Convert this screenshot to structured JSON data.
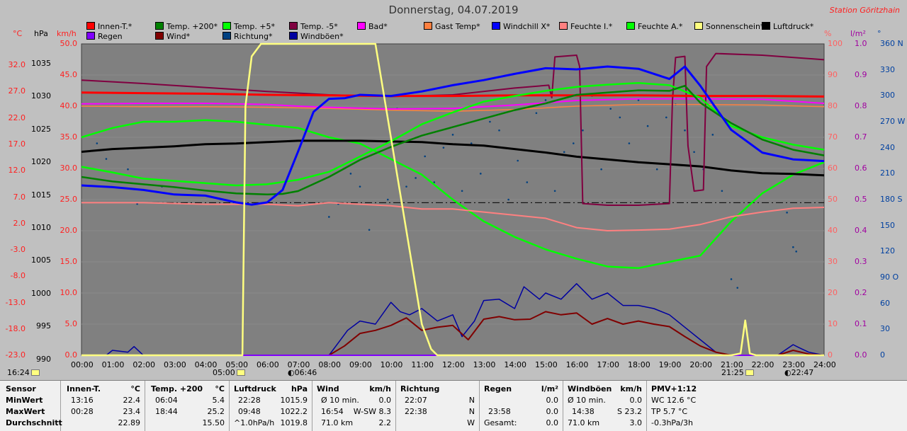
{
  "title": "Donnerstag, 04.07.2019",
  "station": "Station Göritzhain",
  "legend": [
    {
      "label": "Innen-T.*",
      "color": "#ff0000"
    },
    {
      "label": "Temp. +200*",
      "color": "#008000"
    },
    {
      "label": "Temp. +5*",
      "color": "#00ff00"
    },
    {
      "label": "Temp. -5*",
      "color": "#800040"
    },
    {
      "label": "Bad*",
      "color": "#ff00ff"
    },
    {
      "label": "Gast Temp*",
      "color": "#ff8040"
    },
    {
      "label": "Windchill X*",
      "color": "#0000ff"
    },
    {
      "label": "Feuchte I.*",
      "color": "#ff8080"
    },
    {
      "label": "Feuchte A.*",
      "color": "#00ff00"
    },
    {
      "label": "Sonnenschein*",
      "color": "#ffff80"
    },
    {
      "label": "Luftdruck*",
      "color": "#000000"
    },
    {
      "label": "Regen",
      "color": "#8000ff"
    },
    {
      "label": "Wind*",
      "color": "#800000"
    },
    {
      "label": "Richtung*",
      "color": "#004080"
    },
    {
      "label": "Windböen*",
      "color": "#0000a0"
    }
  ],
  "axis_units": {
    "temp": "°C",
    "pressure": "hPa",
    "wind": "km/h",
    "humidity": "%",
    "rain": "l/m²",
    "dir": "°"
  },
  "axes": {
    "temp_ticks": [
      "32.0",
      "27.0",
      "22.0",
      "17.0",
      "12.0",
      "7.0",
      "2.0",
      "-3.0",
      "-8.0",
      "-13.0",
      "-18.0",
      "-23.0"
    ],
    "pressure_ticks": [
      "1035",
      "1030",
      "1025",
      "1020",
      "1015",
      "1010",
      "1005",
      "1000",
      "995",
      "990"
    ],
    "wind_ticks": [
      "50.0",
      "45.0",
      "40.0",
      "35.0",
      "30.0",
      "25.0",
      "20.0",
      "15.0",
      "10.0",
      "5.0",
      "0.0"
    ],
    "humidity_ticks": [
      "100",
      "90",
      "80",
      "70",
      "60",
      "50",
      "40",
      "30",
      "20",
      "10",
      "0"
    ],
    "rain_ticks": [
      "1.0",
      "0.9",
      "0.8",
      "0.7",
      "0.6",
      "0.5",
      "0.4",
      "0.3",
      "0.2",
      "0.1",
      "0.0"
    ],
    "dir_ticks": [
      "360 N",
      "330",
      "300",
      "270 W",
      "240",
      "210",
      "180 S",
      "150",
      "120",
      "90 O",
      "60",
      "30",
      "0"
    ],
    "time_ticks": [
      "00:00",
      "01:00",
      "02:00",
      "03:00",
      "04:00",
      "05:00",
      "06:00",
      "07:00",
      "08:00",
      "09:00",
      "10:00",
      "11:00",
      "12:00",
      "13:00",
      "14:00",
      "15:00",
      "16:00",
      "17:00",
      "18:00",
      "19:00",
      "20:00",
      "21:00",
      "22:00",
      "23:00",
      "24:00"
    ]
  },
  "markers": {
    "now": "16:24",
    "sunrise": "05:00",
    "moonrise": "06:46",
    "sunset": "21:25",
    "moonset": "22:47"
  },
  "chart_data": {
    "type": "line",
    "title": "Donnerstag, 04.07.2019",
    "x_unit": "hours",
    "xlim": [
      0,
      24
    ],
    "series": [
      {
        "name": "Innen-T.*",
        "axis": "temp",
        "color": "#ff0000",
        "x": [
          0,
          2,
          4,
          6,
          8,
          10,
          12,
          14,
          16,
          18,
          20,
          22,
          24
        ],
        "y": [
          23.4,
          23.3,
          23.2,
          23.0,
          22.9,
          22.8,
          22.8,
          22.9,
          22.9,
          22.9,
          22.8,
          22.8,
          22.7
        ]
      },
      {
        "name": "Temp. +200*",
        "axis": "temp",
        "color": "#008000",
        "x": [
          0,
          1,
          2,
          3,
          4,
          5,
          6,
          6.5,
          7,
          8,
          9,
          10,
          11,
          12,
          13,
          14,
          15,
          16,
          17,
          18,
          19,
          19.5,
          20,
          21,
          22,
          23,
          24
        ],
        "y": [
          8.5,
          7.7,
          7.2,
          6.7,
          6.1,
          5.6,
          5.4,
          5.5,
          6.0,
          8.5,
          11.5,
          13.8,
          15.8,
          17.3,
          18.8,
          20.3,
          21.5,
          23.0,
          23.4,
          23.8,
          23.7,
          24.6,
          21.6,
          18.0,
          15.1,
          13.3,
          12.3
        ]
      },
      {
        "name": "Temp. +5*",
        "axis": "temp",
        "color": "#00ff00",
        "x": [
          0,
          1,
          2,
          3,
          4,
          5,
          6,
          6.5,
          7,
          8,
          9,
          10,
          11,
          12,
          13,
          14,
          15,
          16,
          17,
          18,
          19,
          20,
          20.5,
          21,
          22,
          23,
          24
        ],
        "y": [
          10.3,
          9.3,
          8.2,
          7.8,
          7.4,
          7.0,
          7.2,
          7.6,
          8.0,
          9.4,
          12.1,
          14.8,
          17.8,
          19.9,
          21.8,
          22.8,
          23.7,
          24.4,
          24.8,
          25.1,
          24.7,
          22.5,
          20.0,
          17.5,
          15.5,
          14.2,
          13.3
        ]
      },
      {
        "name": "Temp. -5*",
        "axis": "temp",
        "color": "#800040",
        "x": [
          0,
          2,
          4,
          6,
          8,
          10,
          12,
          14,
          15.1,
          15.2,
          15.3,
          16,
          16.1,
          16.2,
          17,
          18,
          19,
          19.1,
          19.2,
          19.5,
          19.6,
          19.8,
          20.1,
          20.2,
          20.5,
          22,
          24
        ],
        "y": [
          25.6,
          25.0,
          24.3,
          23.6,
          23.0,
          22.7,
          23.0,
          24.2,
          24.7,
          22.5,
          29.7,
          30.0,
          28.0,
          3.8,
          3.5,
          3.5,
          3.8,
          22.0,
          29.6,
          29.8,
          14.0,
          6.0,
          6.2,
          28.0,
          30.3,
          30.0,
          29.2
        ]
      },
      {
        "name": "Bad*",
        "axis": "temp",
        "color": "#ff00ff",
        "x": [
          0,
          2,
          4,
          5,
          6,
          7,
          8,
          10,
          12,
          14,
          16,
          18,
          20,
          22,
          24
        ],
        "y": [
          21.4,
          21.5,
          21.5,
          21.4,
          21.3,
          21.0,
          20.8,
          20.5,
          20.6,
          21.2,
          22.0,
          22.3,
          22.3,
          22.2,
          21.5
        ]
      },
      {
        "name": "Gast Temp*",
        "axis": "temp",
        "color": "#ff8040",
        "x": [
          0,
          2,
          4,
          6,
          8,
          10,
          12,
          14,
          16,
          18,
          20,
          22,
          24
        ],
        "y": [
          21.0,
          20.9,
          20.9,
          20.8,
          20.6,
          20.3,
          20.1,
          20.4,
          21.0,
          21.3,
          21.3,
          21.2,
          20.9
        ]
      },
      {
        "name": "Windchill X*",
        "axis": "temp",
        "color": "#0000ff",
        "x": [
          0,
          1,
          2,
          3,
          4,
          5,
          5.5,
          6,
          6.5,
          7,
          7.5,
          8,
          8.5,
          9,
          10,
          11,
          12,
          13,
          14,
          15,
          16,
          17,
          18,
          19,
          19.5,
          20,
          21,
          22,
          23,
          24
        ],
        "y": [
          7.0,
          6.7,
          6.2,
          5.4,
          5.2,
          4.0,
          3.6,
          4.0,
          6.2,
          13.0,
          20.0,
          22.3,
          22.4,
          23.0,
          22.8,
          23.6,
          24.7,
          25.6,
          26.7,
          27.7,
          27.5,
          28.0,
          27.6,
          25.8,
          28.0,
          24.6,
          16.8,
          12.8,
          11.6,
          11.3
        ]
      },
      {
        "name": "Feuchte I.*",
        "axis": "humidity",
        "color": "#ff8080",
        "x": [
          0,
          2,
          4,
          6,
          7,
          8,
          9,
          10,
          11,
          12,
          13,
          14,
          15,
          16,
          17,
          18,
          19,
          20,
          21,
          22,
          23,
          24
        ],
        "y": [
          49,
          49,
          48.5,
          48.5,
          48,
          49,
          48.5,
          48,
          47,
          47,
          46,
          45,
          44,
          41,
          40,
          40.2,
          40.5,
          42,
          44.5,
          46,
          47.2,
          47.5
        ]
      },
      {
        "name": "Feuchte A.*",
        "axis": "humidity",
        "color": "#00ff00",
        "x": [
          0,
          1,
          2,
          3,
          4,
          5,
          6,
          7,
          8,
          9,
          10,
          11,
          12,
          13,
          14,
          15,
          16,
          17,
          18,
          19,
          20,
          21,
          22,
          23,
          24
        ],
        "y": [
          70,
          73,
          75,
          75,
          75.5,
          75,
          74,
          73,
          70,
          68,
          63,
          58,
          50,
          43,
          38,
          34,
          31,
          28.5,
          28,
          30,
          32,
          43,
          52,
          58,
          62
        ]
      },
      {
        "name": "Sonnenschein*",
        "axis": "wind",
        "color": "#ffff80",
        "x": [
          0,
          5.0,
          5.2,
          5.3,
          5.5,
          5.8,
          7,
          8,
          9,
          9.5,
          9.6,
          10.5,
          11,
          11.3,
          11.5,
          12,
          21,
          21.3,
          21.45,
          21.6,
          21.8,
          24
        ],
        "y": [
          0,
          0,
          0,
          40,
          48,
          50,
          50,
          50,
          50,
          50,
          47,
          20,
          5,
          1,
          0,
          0,
          0,
          0.3,
          5.6,
          0.3,
          0,
          0
        ]
      },
      {
        "name": "Luftdruck*",
        "axis": "pressure",
        "color": "#000000",
        "x": [
          0,
          1,
          2,
          3,
          4,
          5,
          6,
          7,
          8,
          9,
          10,
          11,
          12,
          13,
          14,
          15,
          16,
          17,
          18,
          19,
          20,
          21,
          22,
          23,
          24
        ],
        "y": [
          1019.4,
          1019.8,
          1020.0,
          1020.2,
          1020.5,
          1020.6,
          1020.8,
          1021.0,
          1021.0,
          1021.0,
          1020.9,
          1020.8,
          1020.5,
          1020.3,
          1019.8,
          1019.3,
          1018.7,
          1018.3,
          1017.9,
          1017.6,
          1017.3,
          1016.7,
          1016.3,
          1016.2,
          1016.0
        ]
      },
      {
        "name": "Regen",
        "axis": "rain",
        "color": "#8000ff",
        "x": [
          0,
          24
        ],
        "y": [
          0,
          0
        ]
      },
      {
        "name": "Wind*",
        "axis": "wind",
        "color": "#800000",
        "x": [
          0,
          8,
          8.5,
          9,
          9.5,
          10,
          10.5,
          11,
          11.5,
          12,
          12.5,
          13,
          13.5,
          14,
          14.5,
          15,
          15.5,
          16,
          16.5,
          17,
          17.5,
          18,
          18.5,
          19,
          19.5,
          20,
          20.5,
          21,
          21.5,
          22,
          22.5,
          23,
          23.5,
          24
        ],
        "y": [
          0,
          0,
          1.5,
          3.5,
          4.0,
          4.8,
          6.0,
          4.0,
          4.5,
          4.8,
          2.5,
          5.8,
          6.2,
          5.7,
          5.8,
          7.0,
          6.5,
          6.8,
          5.0,
          5.9,
          5.0,
          5.5,
          5.0,
          4.6,
          3.0,
          1.5,
          0.5,
          0.0,
          0.0,
          0.0,
          0.0,
          0.8,
          0.2,
          0
        ]
      },
      {
        "name": "Windböen*",
        "axis": "wind",
        "color": "#0000a0",
        "x": [
          0,
          0.8,
          1.0,
          1.5,
          1.7,
          2.0,
          8,
          8.3,
          8.6,
          9,
          9.5,
          10,
          10.3,
          10.6,
          11,
          11.5,
          12,
          12.3,
          12.7,
          13,
          13.5,
          14,
          14.3,
          14.8,
          15,
          15.5,
          16,
          16.5,
          17,
          17.5,
          18,
          18.5,
          19,
          19.5,
          20,
          20.5,
          21,
          21.5,
          22,
          22.5,
          23,
          23.2,
          23.5,
          24
        ],
        "y": [
          0,
          0,
          0.8,
          0.5,
          1.4,
          0,
          0,
          2.0,
          4.0,
          5.5,
          5.0,
          8.5,
          7.0,
          6.5,
          7.5,
          5.5,
          6.5,
          3.0,
          5.5,
          8.8,
          9.0,
          7.5,
          11.0,
          9.0,
          10.0,
          9.0,
          11.5,
          9.0,
          10.0,
          8.0,
          8.0,
          7.5,
          6.5,
          4.5,
          2.5,
          0.5,
          0,
          0,
          0,
          0,
          1.7,
          1.2,
          0.5,
          0
        ]
      },
      {
        "name": "Richtung*",
        "axis": "dir",
        "type": "scatter",
        "color": "#004080",
        "x": [
          0.5,
          0.8,
          1.5,
          1.8,
          2.6,
          8.0,
          8.3,
          8.7,
          9.0,
          9.3,
          9.6,
          9.9,
          10.2,
          10.5,
          10.8,
          11.1,
          11.4,
          11.7,
          12.0,
          12.3,
          12.6,
          12.9,
          13.2,
          13.5,
          13.8,
          14.1,
          14.4,
          14.7,
          15.0,
          15.3,
          15.6,
          15.9,
          16.2,
          16.5,
          16.8,
          17.1,
          17.4,
          17.7,
          18.0,
          18.3,
          18.6,
          18.9,
          19.2,
          19.5,
          19.8,
          20.1,
          20.4,
          20.7,
          21.0,
          21.2,
          22.8,
          23.0,
          23.1
        ],
        "y": [
          245,
          227,
          215,
          175,
          195,
          160,
          175,
          210,
          195,
          145,
          235,
          180,
          285,
          195,
          205,
          230,
          200,
          240,
          255,
          190,
          245,
          210,
          270,
          260,
          180,
          225,
          200,
          280,
          295,
          190,
          235,
          245,
          260,
          300,
          215,
          285,
          275,
          245,
          295,
          265,
          215,
          275,
          290,
          260,
          235,
          215,
          255,
          190,
          88,
          78,
          165,
          125,
          120
        ]
      }
    ],
    "axes_ranges": {
      "temp": [
        -23,
        32
      ],
      "pressure": [
        990,
        1035
      ],
      "wind": [
        0,
        50
      ],
      "humidity": [
        0,
        100
      ],
      "rain": [
        0,
        1
      ],
      "dir": [
        0,
        360
      ]
    },
    "reference_line": {
      "axis": "wind",
      "y": 24.5,
      "style": "dashed"
    }
  },
  "summary": {
    "col1": {
      "header": "Sensor",
      "rows": [
        "MinWert",
        "MaxWert",
        "Durchschnitt"
      ]
    },
    "col2": {
      "header": "Innen-T.",
      "unit": "°C",
      "rows": [
        [
          "13:16",
          "22.4"
        ],
        [
          "00:28",
          "23.4"
        ],
        [
          "",
          "22.89"
        ]
      ]
    },
    "col3": {
      "header": "Temp. +200",
      "unit": "°C",
      "rows": [
        [
          "06:04",
          "5.4"
        ],
        [
          "18:44",
          "25.2"
        ],
        [
          "",
          "15.50"
        ]
      ]
    },
    "col4": {
      "header": "Luftdruck",
      "unit": "hPa",
      "rows": [
        [
          "22:28",
          "1015.9"
        ],
        [
          "09:48",
          "1022.2"
        ],
        [
          "^1.0hPa/h",
          "1019.8"
        ]
      ]
    },
    "col5": {
      "header": "Wind",
      "unit": "km/h",
      "rows": [
        [
          "Ø 10 min.",
          "0.0"
        ],
        [
          "16:54",
          "W-SW 8.3"
        ],
        [
          "71.0 km",
          "2.2"
        ]
      ]
    },
    "col6": {
      "header": "Richtung",
      "rows": [
        [
          "22:07",
          "N"
        ],
        [
          "22:38",
          "N"
        ],
        [
          "",
          "W"
        ]
      ]
    },
    "col7": {
      "header": "Regen",
      "unit": "l/m²",
      "rows": [
        [
          "",
          ""
        ],
        [
          "23:58",
          "0.0"
        ],
        [
          "Gesamt:",
          "0.0"
        ]
      ]
    },
    "col7b": {
      "r0": "0.0"
    },
    "col8": {
      "header": "Windböen",
      "unit": "km/h",
      "rows": [
        [
          "Ø 10 min.",
          "0.0"
        ],
        [
          "14:38",
          "S 23.2"
        ],
        [
          "71.0 km",
          "3.0"
        ]
      ]
    },
    "col9": {
      "header": "PMV+1:12",
      "rows": [
        "WC 12.6 °C",
        "TP 5.7 °C",
        "-0.3hPa/3h"
      ]
    }
  }
}
